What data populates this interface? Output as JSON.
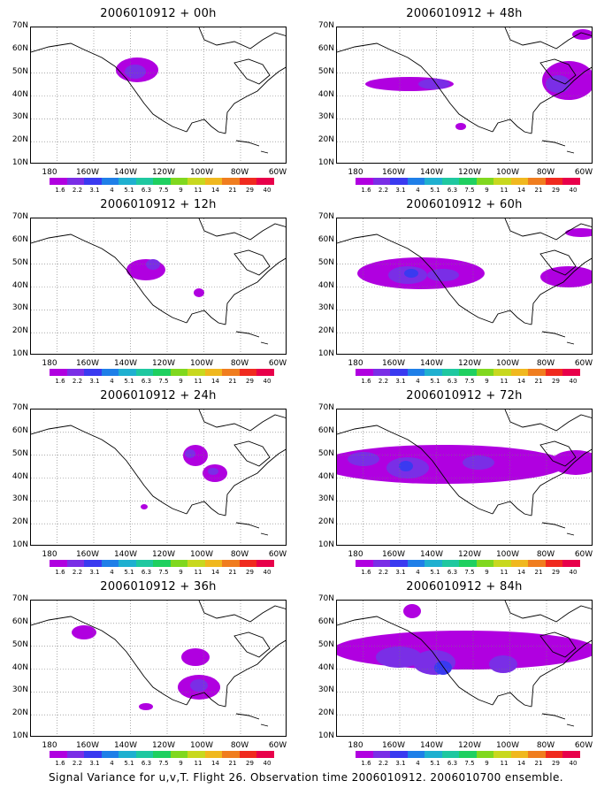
{
  "caption": "Signal Variance for u,v,T. Flight 26. Observation time 2006010912. 2006010700 ensemble.",
  "panels": [
    {
      "title": "2006010912 + 00h"
    },
    {
      "title": "2006010912 + 48h"
    },
    {
      "title": "2006010912 + 12h"
    },
    {
      "title": "2006010912 + 60h"
    },
    {
      "title": "2006010912 + 24h"
    },
    {
      "title": "2006010912 + 72h"
    },
    {
      "title": "2006010912 + 36h"
    },
    {
      "title": "2006010912 + 84h"
    }
  ],
  "axes": {
    "lat_labels": [
      "70N",
      "60N",
      "50N",
      "40N",
      "30N",
      "20N",
      "10N"
    ],
    "lon_labels": [
      "180",
      "160W",
      "140W",
      "120W",
      "100W",
      "80W",
      "60W"
    ]
  },
  "colorbar": {
    "labels": [
      "1.6",
      "2.2",
      "3.1",
      "4",
      "5.1",
      "6.3",
      "7.5",
      "9",
      "11",
      "14",
      "21",
      "29",
      "40"
    ],
    "colors": [
      "#b000e0",
      "#7a2ee6",
      "#3a3af0",
      "#1f7fe8",
      "#1fb0d0",
      "#1fc8a0",
      "#1fd060",
      "#80d81f",
      "#c8d81f",
      "#f0b81f",
      "#f07d1f",
      "#f02a1f",
      "#e8004a"
    ]
  }
}
